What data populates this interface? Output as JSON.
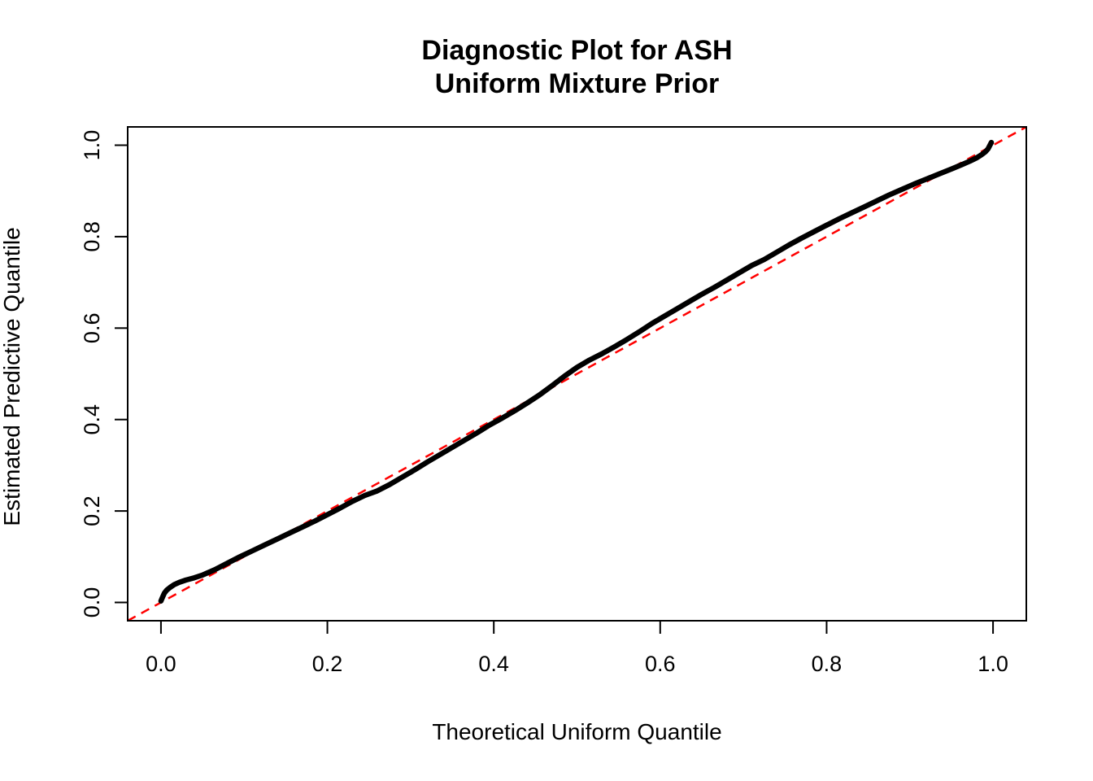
{
  "title": {
    "line1": "Diagnostic Plot for ASH",
    "line2": "Uniform Mixture Prior"
  },
  "chart_data": {
    "type": "line",
    "subtype": "qq-plot-diagnostic",
    "title": "Diagnostic Plot for ASH\nUniform Mixture Prior",
    "xlabel": "Theoretical Uniform Quantile",
    "ylabel": "Estimated Predictive Quantile",
    "xlim": [
      -0.04,
      1.04
    ],
    "ylim": [
      -0.04,
      1.04
    ],
    "grid": false,
    "legend": null,
    "x_tick_values": [
      0.0,
      0.2,
      0.4,
      0.6,
      0.8,
      1.0
    ],
    "x_tick_labels": [
      "0.0",
      "0.2",
      "0.4",
      "0.6",
      "0.8",
      "1.0"
    ],
    "y_tick_values": [
      0.0,
      0.2,
      0.4,
      0.6,
      0.8,
      1.0
    ],
    "y_tick_labels": [
      "0.0",
      "0.2",
      "0.4",
      "0.6",
      "0.8",
      "1.0"
    ],
    "colors": {
      "curve": "#000000",
      "reference_line": "#FF0000",
      "axis": "#000000",
      "background": "#FFFFFF"
    },
    "series": [
      {
        "name": "estimated-vs-theoretical-quantiles",
        "style": "solid",
        "color": "#000000",
        "linewidth": 6.5,
        "points": [
          [
            0.0,
            0.003
          ],
          [
            0.002,
            0.012
          ],
          [
            0.004,
            0.02
          ],
          [
            0.007,
            0.027
          ],
          [
            0.011,
            0.033
          ],
          [
            0.016,
            0.039
          ],
          [
            0.022,
            0.044
          ],
          [
            0.03,
            0.049
          ],
          [
            0.04,
            0.054
          ],
          [
            0.05,
            0.06
          ],
          [
            0.065,
            0.072
          ],
          [
            0.08,
            0.086
          ],
          [
            0.095,
            0.1
          ],
          [
            0.11,
            0.113
          ],
          [
            0.125,
            0.126
          ],
          [
            0.14,
            0.139
          ],
          [
            0.155,
            0.152
          ],
          [
            0.17,
            0.165
          ],
          [
            0.185,
            0.178
          ],
          [
            0.2,
            0.192
          ],
          [
            0.215,
            0.206
          ],
          [
            0.23,
            0.221
          ],
          [
            0.245,
            0.234
          ],
          [
            0.26,
            0.244
          ],
          [
            0.275,
            0.258
          ],
          [
            0.29,
            0.274
          ],
          [
            0.305,
            0.29
          ],
          [
            0.32,
            0.307
          ],
          [
            0.335,
            0.323
          ],
          [
            0.35,
            0.339
          ],
          [
            0.365,
            0.355
          ],
          [
            0.38,
            0.371
          ],
          [
            0.395,
            0.388
          ],
          [
            0.41,
            0.403
          ],
          [
            0.425,
            0.419
          ],
          [
            0.44,
            0.436
          ],
          [
            0.455,
            0.454
          ],
          [
            0.47,
            0.474
          ],
          [
            0.485,
            0.495
          ],
          [
            0.5,
            0.514
          ],
          [
            0.515,
            0.53
          ],
          [
            0.53,
            0.544
          ],
          [
            0.545,
            0.559
          ],
          [
            0.56,
            0.575
          ],
          [
            0.575,
            0.592
          ],
          [
            0.59,
            0.61
          ],
          [
            0.605,
            0.626
          ],
          [
            0.62,
            0.642
          ],
          [
            0.635,
            0.658
          ],
          [
            0.65,
            0.674
          ],
          [
            0.665,
            0.689
          ],
          [
            0.68,
            0.705
          ],
          [
            0.695,
            0.721
          ],
          [
            0.71,
            0.737
          ],
          [
            0.725,
            0.75
          ],
          [
            0.74,
            0.766
          ],
          [
            0.755,
            0.782
          ],
          [
            0.77,
            0.797
          ],
          [
            0.785,
            0.811
          ],
          [
            0.8,
            0.825
          ],
          [
            0.815,
            0.839
          ],
          [
            0.83,
            0.852
          ],
          [
            0.845,
            0.865
          ],
          [
            0.86,
            0.878
          ],
          [
            0.875,
            0.891
          ],
          [
            0.89,
            0.903
          ],
          [
            0.905,
            0.915
          ],
          [
            0.92,
            0.926
          ],
          [
            0.935,
            0.937
          ],
          [
            0.95,
            0.948
          ],
          [
            0.962,
            0.957
          ],
          [
            0.972,
            0.965
          ],
          [
            0.98,
            0.972
          ],
          [
            0.986,
            0.979
          ],
          [
            0.991,
            0.986
          ],
          [
            0.994,
            0.992
          ],
          [
            0.996,
            0.999
          ],
          [
            0.998,
            1.006
          ]
        ]
      },
      {
        "name": "reference-line-y-equals-x",
        "style": "dashed",
        "color": "#FF0000",
        "linewidth": 2.5,
        "points": [
          [
            -0.04,
            -0.04
          ],
          [
            1.04,
            1.04
          ]
        ]
      }
    ]
  }
}
